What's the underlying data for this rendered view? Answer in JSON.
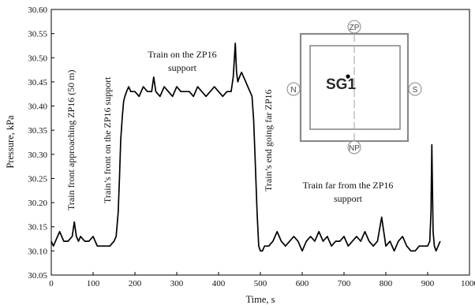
{
  "chart_data": {
    "type": "line",
    "title": "",
    "xlabel": "Time, s",
    "ylabel": "Pressure, kPa",
    "xlim": [
      0,
      1000
    ],
    "ylim": [
      30.05,
      30.6
    ],
    "x_ticks": [
      0,
      100,
      200,
      300,
      400,
      500,
      600,
      700,
      800,
      900,
      1000
    ],
    "y_ticks": [
      30.05,
      30.1,
      30.15,
      30.2,
      30.25,
      30.3,
      30.35,
      30.4,
      30.45,
      30.5,
      30.55,
      30.6
    ],
    "grid": false,
    "series": [
      {
        "color": "#000000",
        "x": [
          0,
          5,
          10,
          20,
          30,
          40,
          50,
          55,
          60,
          65,
          70,
          80,
          90,
          100,
          110,
          120,
          130,
          140,
          150,
          155,
          160,
          163,
          166,
          170,
          173,
          176,
          180,
          185,
          190,
          200,
          210,
          220,
          230,
          240,
          245,
          250,
          260,
          270,
          280,
          290,
          300,
          310,
          320,
          330,
          340,
          350,
          360,
          370,
          380,
          390,
          400,
          410,
          420,
          430,
          435,
          440,
          443,
          446,
          450,
          455,
          460,
          465,
          470,
          475,
          480,
          484,
          488,
          492,
          496,
          500,
          505,
          510,
          520,
          530,
          540,
          550,
          560,
          570,
          580,
          590,
          600,
          610,
          620,
          630,
          640,
          650,
          660,
          670,
          680,
          690,
          700,
          710,
          720,
          730,
          740,
          750,
          760,
          770,
          780,
          790,
          800,
          810,
          820,
          830,
          840,
          850,
          860,
          870,
          880,
          890,
          900,
          905,
          908,
          910,
          913,
          916,
          920,
          925,
          930
        ],
        "y": [
          30.12,
          30.11,
          30.12,
          30.14,
          30.12,
          30.12,
          30.13,
          30.16,
          30.13,
          30.12,
          30.13,
          30.12,
          30.12,
          30.13,
          30.11,
          30.11,
          30.11,
          30.11,
          30.12,
          30.13,
          30.18,
          30.25,
          30.33,
          30.38,
          30.41,
          30.42,
          30.43,
          30.44,
          30.43,
          30.43,
          30.42,
          30.44,
          30.43,
          30.43,
          30.46,
          30.43,
          30.42,
          30.44,
          30.43,
          30.42,
          30.44,
          30.43,
          30.43,
          30.43,
          30.42,
          30.44,
          30.43,
          30.42,
          30.43,
          30.44,
          30.43,
          30.42,
          30.43,
          30.43,
          30.46,
          30.53,
          30.47,
          30.45,
          30.46,
          30.47,
          30.46,
          30.45,
          30.44,
          30.43,
          30.42,
          30.37,
          30.28,
          30.18,
          30.11,
          30.1,
          30.1,
          30.11,
          30.11,
          30.12,
          30.14,
          30.12,
          30.11,
          30.12,
          30.13,
          30.12,
          30.1,
          30.12,
          30.13,
          30.12,
          30.14,
          30.12,
          30.13,
          30.11,
          30.12,
          30.12,
          30.13,
          30.11,
          30.12,
          30.13,
          30.12,
          30.14,
          30.12,
          30.11,
          30.12,
          30.17,
          30.11,
          30.12,
          30.1,
          30.12,
          30.13,
          30.11,
          30.1,
          30.1,
          30.11,
          30.11,
          30.11,
          30.12,
          30.18,
          30.32,
          30.14,
          30.11,
          30.1,
          30.11,
          30.12
        ]
      }
    ],
    "annotations": [
      "Train front approaching ZP16 (50 m)",
      "Train’s front on the ZP16 support",
      "Train on the ZP16",
      "support",
      "Train’s end going far ZP16",
      "Train far from the ZP16",
      "support"
    ]
  },
  "inset": {
    "label": "SG1",
    "compass": [
      "ZP",
      "N",
      "S",
      "NP"
    ]
  }
}
